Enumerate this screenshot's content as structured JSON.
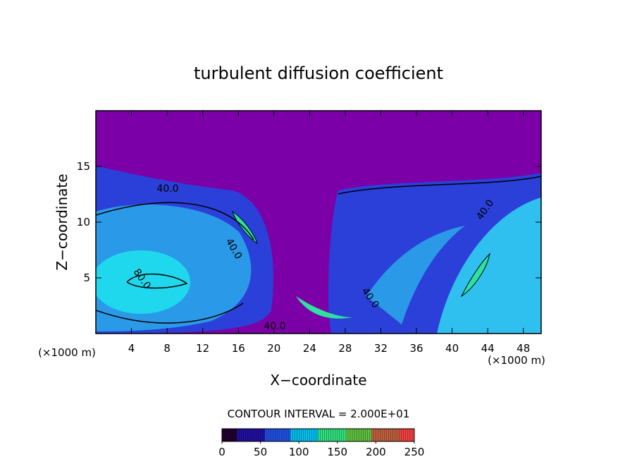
{
  "chart_data": {
    "type": "contour",
    "title": "turbulent diffusion coefficient",
    "x_label": "X−coordinate",
    "y_label": "Z−coordinate",
    "x_unit_label": "(×1000 m)",
    "xlim": [
      0,
      50
    ],
    "ylim": [
      0,
      20
    ],
    "xticks": [
      4,
      8,
      12,
      16,
      20,
      24,
      28,
      32,
      36,
      40,
      44,
      48
    ],
    "yticks": [
      5,
      10,
      15
    ],
    "contour_labels": [
      "40.0",
      "40.0",
      "40.0",
      "40.0",
      "40.0",
      "80.0"
    ],
    "contour_interval_text": "CONTOUR INTERVAL = 2.000E+01",
    "colorbar": {
      "clim": [
        0,
        250
      ],
      "ticks": [
        0,
        50,
        100,
        150,
        200,
        250
      ],
      "colormap": [
        "#200030",
        "#2010a0",
        "#2050e0",
        "#00c0f0",
        "#30e080",
        "#60c040",
        "#c06040",
        "#f04040"
      ]
    }
  }
}
